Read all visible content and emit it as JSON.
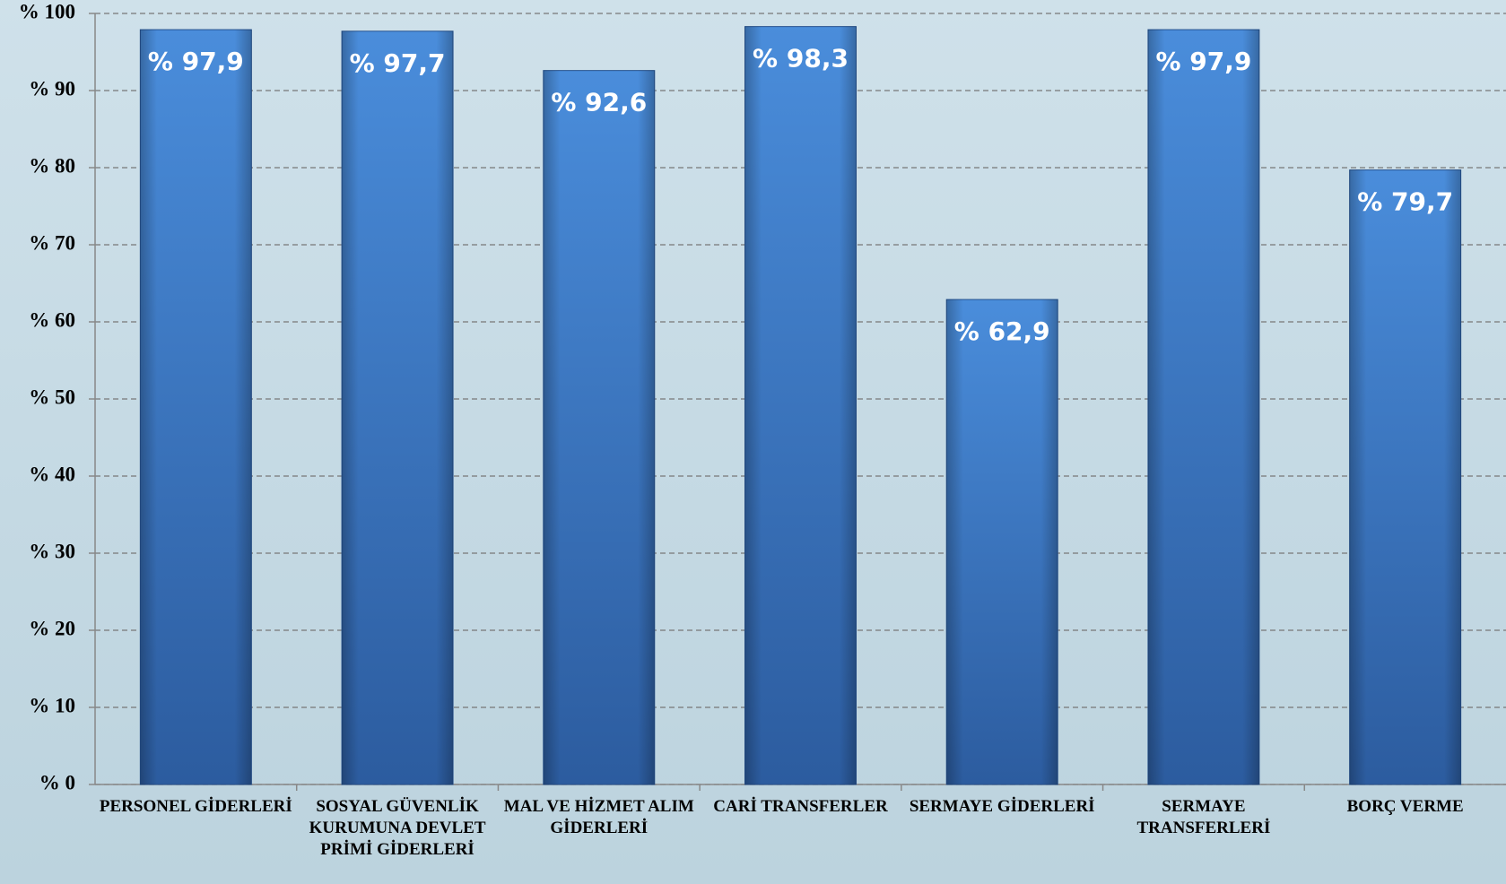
{
  "chart_data": {
    "type": "bar",
    "categories": [
      "PERSONEL GİDERLERİ",
      "SOSYAL GÜVENLİK KURUMUNA DEVLET PRİMİ GİDERLERİ",
      "MAL VE HİZMET ALIM GİDERLERİ",
      "CARİ TRANSFERLER",
      "SERMAYE GİDERLERİ",
      "SERMAYE TRANSFERLERİ",
      "BORÇ VERME"
    ],
    "values": [
      97.9,
      97.7,
      92.6,
      98.3,
      62.9,
      97.9,
      79.7
    ],
    "value_labels": [
      "% 97,9",
      "% 97,7",
      "% 92,6",
      "% 98,3",
      "% 62,9",
      "% 97,9",
      "% 79,7"
    ],
    "color": "#3d7bcc",
    "ylim": [
      0,
      100
    ],
    "yticks": [
      {
        "value": 0,
        "label": "% 0"
      },
      {
        "value": 10,
        "label": "% 10"
      },
      {
        "value": 20,
        "label": "% 20"
      },
      {
        "value": 30,
        "label": "% 30"
      },
      {
        "value": 40,
        "label": "% 40"
      },
      {
        "value": 50,
        "label": "% 50"
      },
      {
        "value": 60,
        "label": "% 60"
      },
      {
        "value": 70,
        "label": "% 70"
      },
      {
        "value": 80,
        "label": "% 80"
      },
      {
        "value": 90,
        "label": "% 90"
      },
      {
        "value": 100,
        "label": "% 100"
      }
    ],
    "grid": true
  }
}
